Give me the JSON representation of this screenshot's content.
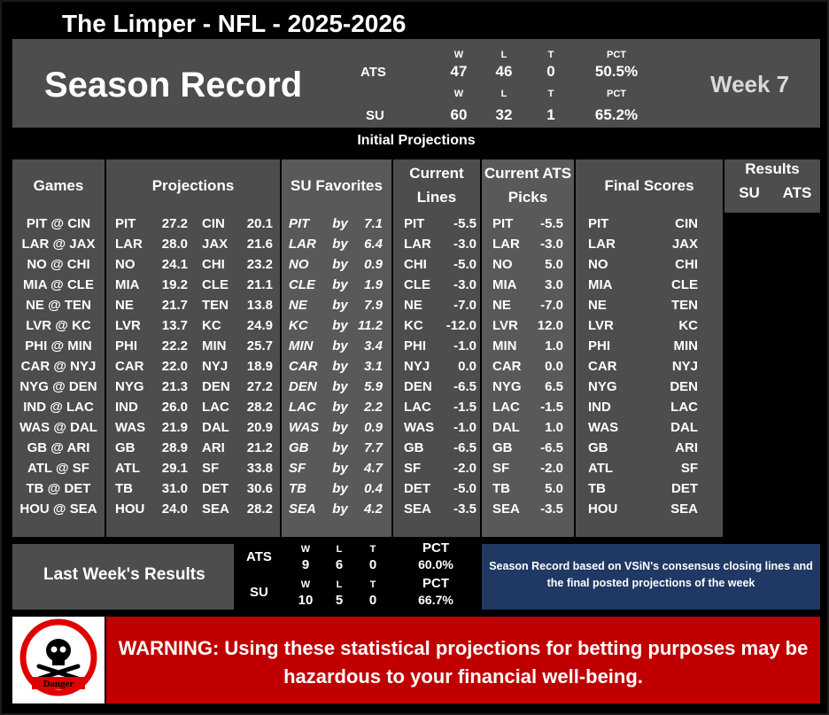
{
  "title": "The Limper - NFL - 2025-2026",
  "season": {
    "heading": "Season Record",
    "week": "Week 7",
    "ats": {
      "label": "ATS",
      "w_h": "W",
      "l_h": "L",
      "t_h": "T",
      "pct_h": "PCT",
      "w": "47",
      "l": "46",
      "t": "0",
      "pct": "50.5%"
    },
    "su": {
      "label": "SU",
      "w_h": "W",
      "l_h": "L",
      "t_h": "T",
      "pct_h": "PCT",
      "w": "60",
      "l": "32",
      "t": "1",
      "pct": "65.2%"
    }
  },
  "initial_label": "Initial Projections",
  "headers": {
    "games": "Games",
    "projections": "Projections",
    "su_favorites": "SU Favorites",
    "current_lines_1": "Current",
    "current_lines_2": "Lines",
    "current_ats_1": "Current ATS",
    "current_ats_2": "Picks",
    "final_scores": "Final Scores",
    "results": "Results",
    "results_su": "SU",
    "results_ats": "ATS"
  },
  "rows": [
    {
      "game": "PIT @ CIN",
      "p1": "PIT",
      "s1": "27.2",
      "p2": "CIN",
      "s2": "20.1",
      "fav": "PIT",
      "by": "by",
      "margin": "7.1",
      "line_team": "PIT",
      "line": "-5.5",
      "pick_team": "PIT",
      "pick": "-5.5",
      "f1": "PIT",
      "f2": "CIN"
    },
    {
      "game": "LAR @ JAX",
      "p1": "LAR",
      "s1": "28.0",
      "p2": "JAX",
      "s2": "21.6",
      "fav": "LAR",
      "by": "by",
      "margin": "6.4",
      "line_team": "LAR",
      "line": "-3.0",
      "pick_team": "LAR",
      "pick": "-3.0",
      "f1": "LAR",
      "f2": "JAX"
    },
    {
      "game": "NO @ CHI",
      "p1": "NO",
      "s1": "24.1",
      "p2": "CHI",
      "s2": "23.2",
      "fav": "NO",
      "by": "by",
      "margin": "0.9",
      "line_team": "CHI",
      "line": "-5.0",
      "pick_team": "NO",
      "pick": "5.0",
      "f1": "NO",
      "f2": "CHI"
    },
    {
      "game": "MIA @ CLE",
      "p1": "MIA",
      "s1": "19.2",
      "p2": "CLE",
      "s2": "21.1",
      "fav": "CLE",
      "by": "by",
      "margin": "1.9",
      "line_team": "CLE",
      "line": "-3.0",
      "pick_team": "MIA",
      "pick": "3.0",
      "f1": "MIA",
      "f2": "CLE"
    },
    {
      "game": "NE @ TEN",
      "p1": "NE",
      "s1": "21.7",
      "p2": "TEN",
      "s2": "13.8",
      "fav": "NE",
      "by": "by",
      "margin": "7.9",
      "line_team": "NE",
      "line": "-7.0",
      "pick_team": "NE",
      "pick": "-7.0",
      "f1": "NE",
      "f2": "TEN"
    },
    {
      "game": "LVR @ KC",
      "p1": "LVR",
      "s1": "13.7",
      "p2": "KC",
      "s2": "24.9",
      "fav": "KC",
      "by": "by",
      "margin": "11.2",
      "line_team": "KC",
      "line": "-12.0",
      "pick_team": "LVR",
      "pick": "12.0",
      "f1": "LVR",
      "f2": "KC"
    },
    {
      "game": "PHI @ MIN",
      "p1": "PHI",
      "s1": "22.2",
      "p2": "MIN",
      "s2": "25.7",
      "fav": "MIN",
      "by": "by",
      "margin": "3.4",
      "line_team": "PHI",
      "line": "-1.0",
      "pick_team": "MIN",
      "pick": "1.0",
      "f1": "PHI",
      "f2": "MIN"
    },
    {
      "game": "CAR @ NYJ",
      "p1": "CAR",
      "s1": "22.0",
      "p2": "NYJ",
      "s2": "18.9",
      "fav": "CAR",
      "by": "by",
      "margin": "3.1",
      "line_team": "NYJ",
      "line": "0.0",
      "pick_team": "CAR",
      "pick": "0.0",
      "f1": "CAR",
      "f2": "NYJ"
    },
    {
      "game": "NYG @ DEN",
      "p1": "NYG",
      "s1": "21.3",
      "p2": "DEN",
      "s2": "27.2",
      "fav": "DEN",
      "by": "by",
      "margin": "5.9",
      "line_team": "DEN",
      "line": "-6.5",
      "pick_team": "NYG",
      "pick": "6.5",
      "f1": "NYG",
      "f2": "DEN"
    },
    {
      "game": "IND @ LAC",
      "p1": "IND",
      "s1": "26.0",
      "p2": "LAC",
      "s2": "28.2",
      "fav": "LAC",
      "by": "by",
      "margin": "2.2",
      "line_team": "LAC",
      "line": "-1.5",
      "pick_team": "LAC",
      "pick": "-1.5",
      "f1": "IND",
      "f2": "LAC"
    },
    {
      "game": "WAS @ DAL",
      "p1": "WAS",
      "s1": "21.9",
      "p2": "DAL",
      "s2": "20.9",
      "fav": "WAS",
      "by": "by",
      "margin": "0.9",
      "line_team": "WAS",
      "line": "-1.0",
      "pick_team": "DAL",
      "pick": "1.0",
      "f1": "WAS",
      "f2": "DAL"
    },
    {
      "game": "GB @ ARI",
      "p1": "GB",
      "s1": "28.9",
      "p2": "ARI",
      "s2": "21.2",
      "fav": "GB",
      "by": "by",
      "margin": "7.7",
      "line_team": "GB",
      "line": "-6.5",
      "pick_team": "GB",
      "pick": "-6.5",
      "f1": "GB",
      "f2": "ARI"
    },
    {
      "game": "ATL @ SF",
      "p1": "ATL",
      "s1": "29.1",
      "p2": "SF",
      "s2": "33.8",
      "fav": "SF",
      "by": "by",
      "margin": "4.7",
      "line_team": "SF",
      "line": "-2.0",
      "pick_team": "SF",
      "pick": "-2.0",
      "f1": "ATL",
      "f2": "SF"
    },
    {
      "game": "TB @ DET",
      "p1": "TB",
      "s1": "31.0",
      "p2": "DET",
      "s2": "30.6",
      "fav": "TB",
      "by": "by",
      "margin": "0.4",
      "line_team": "DET",
      "line": "-5.0",
      "pick_team": "TB",
      "pick": "5.0",
      "f1": "TB",
      "f2": "DET"
    },
    {
      "game": "HOU @ SEA",
      "p1": "HOU",
      "s1": "24.0",
      "p2": "SEA",
      "s2": "28.2",
      "fav": "SEA",
      "by": "by",
      "margin": "4.2",
      "line_team": "SEA",
      "line": "-3.5",
      "pick_team": "SEA",
      "pick": "-3.5",
      "f1": "HOU",
      "f2": "SEA"
    }
  ],
  "last_week": {
    "label": "Last Week's Results",
    "ats": {
      "label": "ATS",
      "w_h": "W",
      "l_h": "L",
      "t_h": "T",
      "pct_h": "PCT",
      "w": "9",
      "l": "6",
      "t": "0",
      "pct": "60.0%"
    },
    "su": {
      "label": "SU",
      "w_h": "W",
      "l_h": "L",
      "t_h": "T",
      "pct_h": "PCT",
      "w": "10",
      "l": "5",
      "t": "0",
      "pct": "66.7%"
    }
  },
  "note": "Season Record based on VSiN's consensus closing lines and the final posted projections of the week",
  "danger_label": "Danger",
  "warning": "WARNING: Using these statistical projections for betting purposes may be hazardous to your financial well-being.",
  "colors": {
    "panel": "#4d4d4d",
    "panel_alt": "#595959",
    "note_bg": "#1f3864",
    "warning_bg": "#c00000"
  }
}
